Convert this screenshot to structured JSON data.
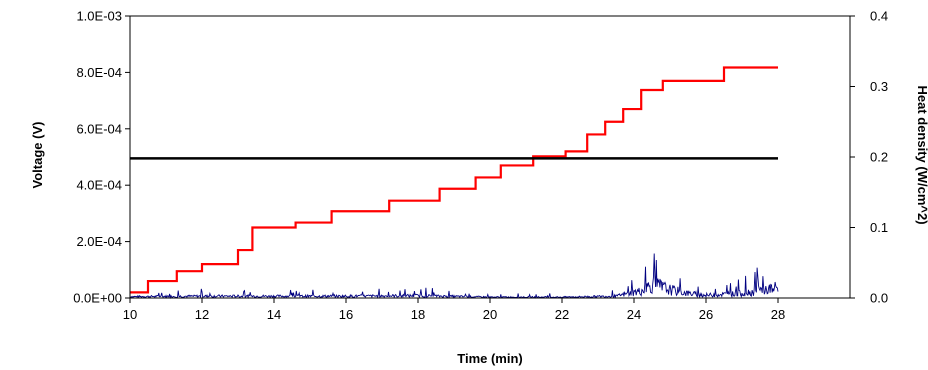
{
  "chart_data": {
    "type": "line",
    "title": "",
    "xlabel": "Time (min)",
    "ylabel": "Voltage (V)",
    "y2label": "Heat density (W/cm^2)",
    "xlim": [
      10,
      30
    ],
    "ylim": [
      0,
      0.001
    ],
    "y2lim": [
      0,
      0.4
    ],
    "x_ticks": [
      10,
      12,
      14,
      16,
      18,
      20,
      22,
      24,
      26,
      28
    ],
    "x_tick_labels": [
      "10",
      "12",
      "14",
      "16",
      "18",
      "20",
      "22",
      "24",
      "26",
      "28"
    ],
    "y_ticks": [
      0,
      0.0002,
      0.0004,
      0.0006,
      0.0008,
      0.001
    ],
    "y_tick_labels": [
      "0.0E+00",
      "2.0E-04",
      "4.0E-04",
      "6.0E-04",
      "8.0E-04",
      "1.0E-03"
    ],
    "y2_ticks": [
      0,
      0.1,
      0.2,
      0.3,
      0.4
    ],
    "y2_tick_labels": [
      "0.0",
      "0.1",
      "0.2",
      "0.3",
      "0.4"
    ],
    "grid": false,
    "legend": "none",
    "series": [
      {
        "color": "#ff0000",
        "axis": "right",
        "style": "step",
        "x": [
          10.0,
          10.5,
          11.3,
          12.0,
          13.0,
          13.4,
          14.6,
          15.6,
          17.2,
          18.6,
          19.6,
          20.3,
          21.2,
          22.1,
          22.7,
          23.2,
          23.7,
          24.2,
          24.8,
          26.5,
          28.0
        ],
        "y": [
          0.008,
          0.024,
          0.038,
          0.048,
          0.068,
          0.1,
          0.107,
          0.123,
          0.138,
          0.155,
          0.171,
          0.188,
          0.201,
          0.208,
          0.232,
          0.25,
          0.268,
          0.295,
          0.308,
          0.327,
          0.327
        ]
      },
      {
        "color": "#000000",
        "axis": "right",
        "style": "line",
        "x": [
          10.0,
          28.0
        ],
        "y": [
          0.198,
          0.198
        ]
      },
      {
        "color": "#000080",
        "axis": "right",
        "style": "noise",
        "x": [
          10.0,
          12.0,
          14.0,
          16.0,
          18.0,
          20.0,
          22.0,
          23.5,
          24.2,
          24.5,
          25.0,
          25.5,
          26.0,
          27.0,
          28.0
        ],
        "y": [
          0.003,
          0.004,
          0.004,
          0.004,
          0.005,
          0.002,
          0.002,
          0.004,
          0.015,
          0.03,
          0.018,
          0.01,
          0.006,
          0.01,
          0.022
        ]
      }
    ]
  }
}
